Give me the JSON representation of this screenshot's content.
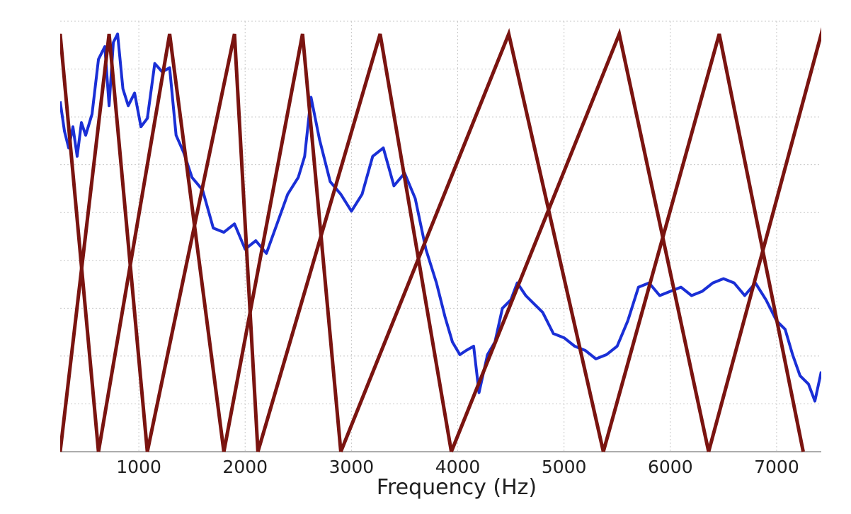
{
  "chart_data": {
    "type": "line",
    "title": "",
    "xlabel": "Frequency (Hz)",
    "ylabel": "",
    "xlim": [
      260,
      7420
    ],
    "ylim": [
      0,
      10
    ],
    "x_ticks": [
      1000,
      2000,
      3000,
      4000,
      5000,
      6000,
      7000
    ],
    "x_tick_labels": [
      "1000",
      "2000",
      "3000",
      "4000",
      "5000",
      "6000",
      "7000"
    ],
    "grid": true,
    "legend": "none",
    "colors": {
      "spectrum": "#1a2fd6",
      "filterbank": "#7a1410",
      "grid": "#c8c8c8",
      "axis": "#808080"
    },
    "series": [
      {
        "kind": "spectrum",
        "x": [
          260,
          300,
          340,
          380,
          420,
          460,
          500,
          560,
          620,
          680,
          720,
          760,
          800,
          850,
          900,
          960,
          1020,
          1080,
          1150,
          1220,
          1290,
          1350,
          1420,
          1500,
          1600,
          1700,
          1800,
          1900,
          2000,
          2100,
          2200,
          2300,
          2400,
          2500,
          2560,
          2620,
          2700,
          2800,
          2900,
          3000,
          3100,
          3200,
          3300,
          3400,
          3500,
          3600,
          3700,
          3800,
          3880,
          3950,
          4020,
          4080,
          4150,
          4200,
          4280,
          4350,
          4420,
          4500,
          4560,
          4640,
          4720,
          4800,
          4900,
          5000,
          5100,
          5200,
          5300,
          5400,
          5500,
          5600,
          5700,
          5800,
          5900,
          6000,
          6100,
          6200,
          6300,
          6400,
          6500,
          6600,
          6700,
          6800,
          6900,
          7000,
          7080,
          7150,
          7220,
          7300,
          7360,
          7420
        ],
        "y": [
          8.3,
          7.6,
          7.2,
          7.7,
          7.0,
          7.8,
          7.5,
          8.0,
          9.3,
          9.6,
          8.2,
          9.7,
          9.9,
          8.6,
          8.2,
          8.5,
          7.7,
          7.9,
          9.2,
          9.0,
          9.1,
          7.5,
          7.1,
          6.5,
          6.2,
          5.3,
          5.2,
          5.4,
          4.8,
          5.0,
          4.7,
          5.4,
          6.1,
          6.5,
          7.0,
          8.4,
          7.4,
          6.4,
          6.1,
          5.7,
          6.1,
          7.0,
          7.2,
          6.3,
          6.6,
          6.0,
          4.8,
          4.0,
          3.2,
          2.6,
          2.3,
          2.4,
          2.5,
          1.4,
          2.3,
          2.6,
          3.4,
          3.6,
          4.0,
          3.7,
          3.5,
          3.3,
          2.8,
          2.7,
          2.5,
          2.4,
          2.2,
          2.3,
          2.5,
          3.1,
          3.9,
          4.0,
          3.7,
          3.8,
          3.9,
          3.7,
          3.8,
          4.0,
          4.1,
          4.0,
          3.7,
          4.0,
          3.6,
          3.1,
          2.9,
          2.3,
          1.8,
          1.6,
          1.2,
          1.9
        ]
      }
    ],
    "filterbank": {
      "peak": 9.9,
      "base": 0,
      "filters": [
        [
          -540,
          260,
          620
        ],
        [
          260,
          720,
          1080
        ],
        [
          620,
          1290,
          1800
        ],
        [
          1080,
          1900,
          2120
        ],
        [
          1800,
          2540,
          2900
        ],
        [
          2120,
          3270,
          3940
        ],
        [
          2900,
          4480,
          5370
        ],
        [
          3940,
          5520,
          6360
        ],
        [
          5370,
          6460,
          7250
        ],
        [
          6360,
          7420,
          8400
        ]
      ]
    }
  }
}
